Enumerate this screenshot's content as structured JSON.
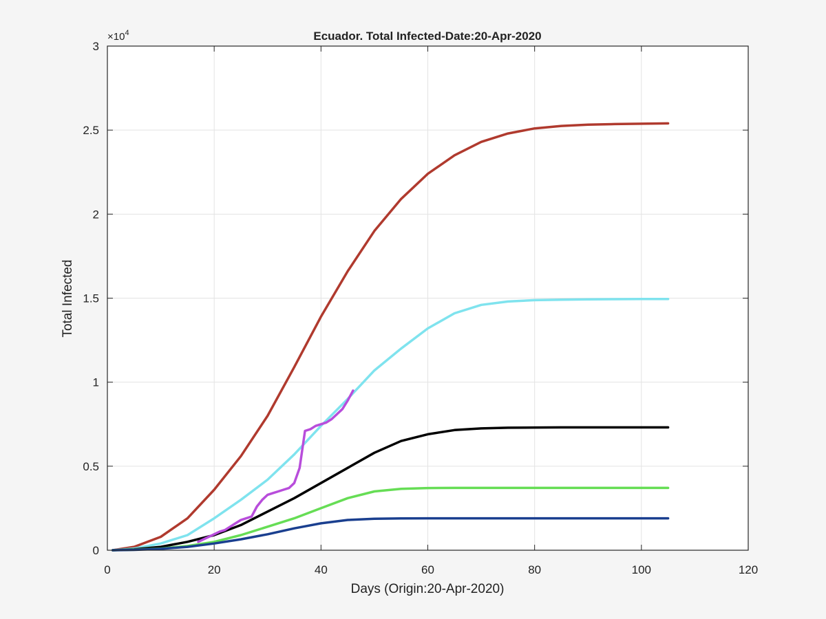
{
  "chart_data": {
    "type": "line",
    "title": "Ecuador. Total Infected-Date:20-Apr-2020",
    "xlabel": "Days (Origin:20-Apr-2020)",
    "ylabel": "Total Infected",
    "y_exponent_label": "×10",
    "y_exponent_power": "4",
    "xlim": [
      0,
      120
    ],
    "ylim": [
      0,
      30000
    ],
    "grid": true,
    "x_ticks": [
      0,
      20,
      40,
      60,
      80,
      100,
      120
    ],
    "x_tick_labels": [
      "0",
      "20",
      "40",
      "60",
      "80",
      "100",
      "120"
    ],
    "y_ticks": [
      0,
      5000,
      10000,
      15000,
      20000,
      25000,
      30000
    ],
    "y_tick_labels": [
      "0",
      "0.5",
      "1",
      "1.5",
      "2",
      "2.5",
      "3"
    ],
    "series": [
      {
        "color": "#b03a2e",
        "x": [
          1,
          5,
          10,
          15,
          20,
          25,
          30,
          35,
          40,
          45,
          50,
          55,
          60,
          65,
          70,
          75,
          80,
          85,
          90,
          95,
          100,
          105
        ],
        "values": [
          0,
          200,
          800,
          1900,
          3600,
          5600,
          8000,
          10900,
          13900,
          16600,
          19000,
          20900,
          22400,
          23500,
          24300,
          24800,
          25100,
          25250,
          25320,
          25360,
          25380,
          25400
        ]
      },
      {
        "color": "#7fe3ee",
        "x": [
          1,
          5,
          10,
          15,
          20,
          25,
          30,
          35,
          40,
          45,
          50,
          55,
          60,
          65,
          70,
          75,
          80,
          85,
          90,
          95,
          100,
          105
        ],
        "values": [
          0,
          100,
          400,
          900,
          1900,
          3000,
          4200,
          5700,
          7400,
          9000,
          10700,
          12000,
          13200,
          14100,
          14600,
          14800,
          14880,
          14910,
          14930,
          14940,
          14950,
          14950
        ]
      },
      {
        "color": "#000000",
        "x": [
          1,
          5,
          10,
          15,
          20,
          25,
          30,
          35,
          40,
          45,
          50,
          55,
          60,
          65,
          70,
          75,
          80,
          85,
          90,
          95,
          100,
          105
        ],
        "values": [
          0,
          50,
          200,
          500,
          900,
          1500,
          2300,
          3100,
          4000,
          4900,
          5800,
          6500,
          6900,
          7150,
          7250,
          7290,
          7300,
          7310,
          7310,
          7310,
          7310,
          7310
        ]
      },
      {
        "color": "#66dd55",
        "x": [
          1,
          5,
          10,
          15,
          20,
          25,
          30,
          35,
          40,
          45,
          50,
          55,
          60,
          65,
          70,
          75,
          80,
          85,
          90,
          95,
          100,
          105
        ],
        "values": [
          0,
          30,
          100,
          250,
          500,
          900,
          1400,
          1900,
          2500,
          3100,
          3500,
          3650,
          3700,
          3710,
          3710,
          3710,
          3710,
          3710,
          3710,
          3710,
          3710,
          3710
        ]
      },
      {
        "color": "#1a3f8f",
        "x": [
          1,
          5,
          10,
          15,
          20,
          25,
          30,
          35,
          40,
          45,
          50,
          55,
          60,
          65,
          70,
          75,
          80,
          85,
          90,
          95,
          100,
          105
        ],
        "values": [
          0,
          20,
          80,
          200,
          400,
          650,
          950,
          1300,
          1600,
          1800,
          1870,
          1890,
          1900,
          1900,
          1900,
          1900,
          1900,
          1900,
          1900,
          1900,
          1900,
          1900
        ]
      },
      {
        "color": "#b84ddb",
        "x": [
          17,
          19,
          21,
          22,
          23,
          24,
          25,
          26,
          27,
          28,
          29,
          30,
          31,
          32,
          33,
          34,
          35,
          36,
          37,
          38,
          39,
          40,
          41,
          42,
          43,
          44,
          45,
          46
        ],
        "values": [
          500,
          800,
          1100,
          1200,
          1400,
          1600,
          1800,
          1900,
          2000,
          2600,
          3000,
          3300,
          3400,
          3500,
          3600,
          3700,
          4000,
          4900,
          7100,
          7200,
          7400,
          7500,
          7600,
          7800,
          8100,
          8400,
          8900,
          9500
        ]
      }
    ]
  }
}
